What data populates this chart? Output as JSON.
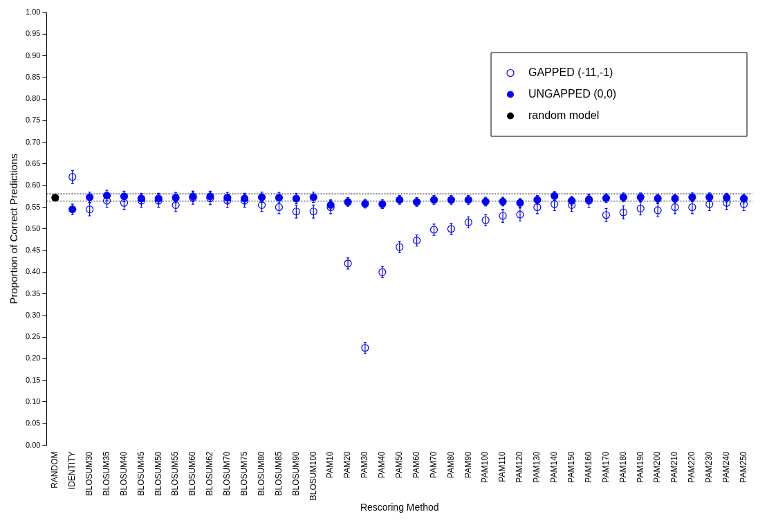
{
  "chart_data": {
    "type": "scatter",
    "xlabel": "Rescoring Method",
    "ylabel": "Proportion of Correct Predictions",
    "categories": [
      "RANDOM",
      "IDENTITY",
      "BLOSUM30",
      "BLOSUM35",
      "BLOSUM40",
      "BLOSUM45",
      "BLOSUM50",
      "BLOSUM55",
      "BLOSUM60",
      "BLOSUM62",
      "BLOSUM70",
      "BLOSUM75",
      "BLOSUM80",
      "BLOSUM85",
      "BLOSUM90",
      "BLOSUM100",
      "PAM10",
      "PAM20",
      "PAM30",
      "PAM40",
      "PAM50",
      "PAM60",
      "PAM70",
      "PAM80",
      "PAM90",
      "PAM100",
      "PAM110",
      "PAM120",
      "PAM130",
      "PAM140",
      "PAM150",
      "PAM160",
      "PAM170",
      "PAM180",
      "PAM190",
      "PAM200",
      "PAM210",
      "PAM220",
      "PAM230",
      "PAM240",
      "PAM250"
    ],
    "series": [
      {
        "name": "GAPPED (-11,-1)",
        "color": "#0000ff",
        "values": [
          null,
          0.62,
          0.545,
          0.565,
          0.56,
          0.565,
          0.565,
          0.555,
          0.572,
          0.571,
          0.565,
          0.565,
          0.555,
          0.55,
          0.54,
          0.54,
          0.55,
          0.42,
          0.225,
          0.4,
          0.458,
          0.473,
          0.498,
          0.5,
          0.515,
          0.52,
          0.53,
          0.533,
          0.55,
          0.557,
          0.555,
          0.565,
          0.532,
          0.538,
          0.547,
          0.543,
          0.55,
          0.55,
          0.557,
          0.56,
          0.557
        ],
        "errors": [
          null,
          0.015,
          0.015,
          0.015,
          0.015,
          0.015,
          0.015,
          0.015,
          0.015,
          0.015,
          0.015,
          0.015,
          0.015,
          0.015,
          0.015,
          0.015,
          0.015,
          0.013,
          0.013,
          0.013,
          0.013,
          0.013,
          0.013,
          0.013,
          0.013,
          0.013,
          0.015,
          0.015,
          0.015,
          0.015,
          0.015,
          0.015,
          0.015,
          0.015,
          0.015,
          0.015,
          0.015,
          0.015,
          0.015,
          0.015,
          0.015
        ]
      },
      {
        "name": "UNGAPPED (0,0)",
        "color": "#0000ff",
        "values": [
          null,
          0.545,
          0.573,
          0.577,
          0.575,
          0.57,
          0.57,
          0.572,
          0.575,
          0.575,
          0.572,
          0.57,
          0.573,
          0.572,
          0.57,
          0.573,
          0.555,
          0.562,
          0.558,
          0.557,
          0.567,
          0.562,
          0.567,
          0.567,
          0.567,
          0.563,
          0.563,
          0.56,
          0.567,
          0.576,
          0.565,
          0.568,
          0.571,
          0.573,
          0.573,
          0.57,
          0.57,
          0.573,
          0.573,
          0.572,
          0.57
        ],
        "errors": [
          null,
          0.012,
          0.012,
          0.012,
          0.012,
          0.012,
          0.012,
          0.012,
          0.012,
          0.012,
          0.012,
          0.012,
          0.012,
          0.012,
          0.012,
          0.012,
          0.012,
          0.01,
          0.01,
          0.01,
          0.01,
          0.01,
          0.01,
          0.01,
          0.01,
          0.01,
          0.01,
          0.01,
          0.01,
          0.01,
          0.01,
          0.01,
          0.01,
          0.01,
          0.01,
          0.01,
          0.01,
          0.01,
          0.01,
          0.01,
          0.01
        ]
      },
      {
        "name": "random model",
        "color": "#000000",
        "values": [
          0.572,
          null,
          null,
          null,
          null,
          null,
          null,
          null,
          null,
          null,
          null,
          null,
          null,
          null,
          null,
          null,
          null,
          null,
          null,
          null,
          null,
          null,
          null,
          null,
          null,
          null,
          null,
          null,
          null,
          null,
          null,
          null,
          null,
          null,
          null,
          null,
          null,
          null,
          null,
          null,
          null
        ]
      }
    ],
    "ylim": [
      0,
      1
    ],
    "yticks": [
      {
        "value": 0,
        "label": "0.00"
      },
      {
        "value": 0.05,
        "label": "0.05"
      },
      {
        "value": 0.1,
        "label": "0.10"
      },
      {
        "value": 0.15,
        "label": "0.15"
      },
      {
        "value": 0.2,
        "label": "0.20"
      },
      {
        "value": 0.25,
        "label": "0.25"
      },
      {
        "value": 0.3,
        "label": "0.30"
      },
      {
        "value": 0.35,
        "label": "0.35"
      },
      {
        "value": 0.4,
        "label": "0.40"
      },
      {
        "value": 0.45,
        "label": "0.45"
      },
      {
        "value": 0.5,
        "label": "0.50"
      },
      {
        "value": 0.55,
        "label": "0.55"
      },
      {
        "value": 0.6,
        "label": "0.60"
      },
      {
        "value": 0.65,
        "label": "0.65"
      },
      {
        "value": 0.7,
        "label": "0.70"
      },
      {
        "value": 0.75,
        "label": "0.75"
      },
      {
        "value": 0.8,
        "label": "0.80"
      },
      {
        "value": 0.85,
        "label": "0.85"
      },
      {
        "value": 0.9,
        "label": "0.90"
      },
      {
        "value": 0.95,
        "label": "0.95"
      },
      {
        "value": 1,
        "label": "1.00"
      }
    ],
    "ref_lines": [
      {
        "axis": "y",
        "value": 0.581,
        "line_style": "dotted",
        "color": "#000000"
      },
      {
        "axis": "y",
        "value": 0.564,
        "line_style": "dotted",
        "color": "#000000"
      }
    ],
    "grid": false,
    "legend": "top right",
    "marker": "circle"
  }
}
